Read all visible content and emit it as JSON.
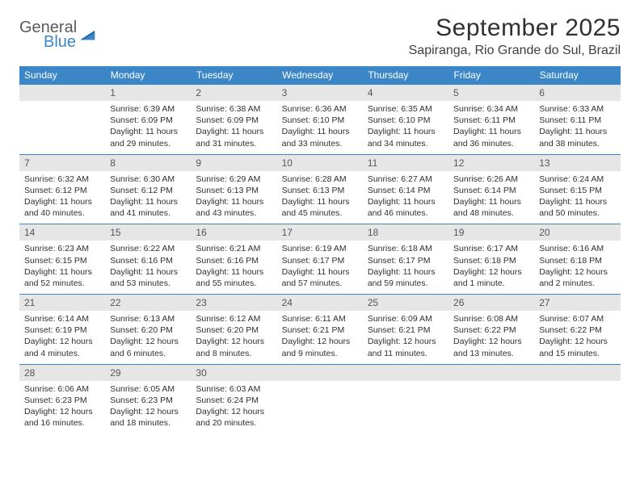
{
  "logo": {
    "general": "General",
    "blue": "Blue"
  },
  "title": "September 2025",
  "location": "Sapiranga, Rio Grande do Sul, Brazil",
  "colors": {
    "header_bg": "#3b86c6",
    "header_text": "#ffffff",
    "daynum_bg": "#e6e6e6",
    "daynum_text": "#555555",
    "rule": "#3b86c6",
    "body_text": "#303030",
    "page_bg": "#ffffff",
    "logo_gray": "#5a5a5a",
    "logo_blue": "#3b86c6"
  },
  "headers": [
    "Sunday",
    "Monday",
    "Tuesday",
    "Wednesday",
    "Thursday",
    "Friday",
    "Saturday"
  ],
  "weeks": [
    [
      {
        "n": "",
        "sr": "",
        "ss": "",
        "dl": ""
      },
      {
        "n": "1",
        "sr": "Sunrise: 6:39 AM",
        "ss": "Sunset: 6:09 PM",
        "dl": "Daylight: 11 hours and 29 minutes."
      },
      {
        "n": "2",
        "sr": "Sunrise: 6:38 AM",
        "ss": "Sunset: 6:09 PM",
        "dl": "Daylight: 11 hours and 31 minutes."
      },
      {
        "n": "3",
        "sr": "Sunrise: 6:36 AM",
        "ss": "Sunset: 6:10 PM",
        "dl": "Daylight: 11 hours and 33 minutes."
      },
      {
        "n": "4",
        "sr": "Sunrise: 6:35 AM",
        "ss": "Sunset: 6:10 PM",
        "dl": "Daylight: 11 hours and 34 minutes."
      },
      {
        "n": "5",
        "sr": "Sunrise: 6:34 AM",
        "ss": "Sunset: 6:11 PM",
        "dl": "Daylight: 11 hours and 36 minutes."
      },
      {
        "n": "6",
        "sr": "Sunrise: 6:33 AM",
        "ss": "Sunset: 6:11 PM",
        "dl": "Daylight: 11 hours and 38 minutes."
      }
    ],
    [
      {
        "n": "7",
        "sr": "Sunrise: 6:32 AM",
        "ss": "Sunset: 6:12 PM",
        "dl": "Daylight: 11 hours and 40 minutes."
      },
      {
        "n": "8",
        "sr": "Sunrise: 6:30 AM",
        "ss": "Sunset: 6:12 PM",
        "dl": "Daylight: 11 hours and 41 minutes."
      },
      {
        "n": "9",
        "sr": "Sunrise: 6:29 AM",
        "ss": "Sunset: 6:13 PM",
        "dl": "Daylight: 11 hours and 43 minutes."
      },
      {
        "n": "10",
        "sr": "Sunrise: 6:28 AM",
        "ss": "Sunset: 6:13 PM",
        "dl": "Daylight: 11 hours and 45 minutes."
      },
      {
        "n": "11",
        "sr": "Sunrise: 6:27 AM",
        "ss": "Sunset: 6:14 PM",
        "dl": "Daylight: 11 hours and 46 minutes."
      },
      {
        "n": "12",
        "sr": "Sunrise: 6:26 AM",
        "ss": "Sunset: 6:14 PM",
        "dl": "Daylight: 11 hours and 48 minutes."
      },
      {
        "n": "13",
        "sr": "Sunrise: 6:24 AM",
        "ss": "Sunset: 6:15 PM",
        "dl": "Daylight: 11 hours and 50 minutes."
      }
    ],
    [
      {
        "n": "14",
        "sr": "Sunrise: 6:23 AM",
        "ss": "Sunset: 6:15 PM",
        "dl": "Daylight: 11 hours and 52 minutes."
      },
      {
        "n": "15",
        "sr": "Sunrise: 6:22 AM",
        "ss": "Sunset: 6:16 PM",
        "dl": "Daylight: 11 hours and 53 minutes."
      },
      {
        "n": "16",
        "sr": "Sunrise: 6:21 AM",
        "ss": "Sunset: 6:16 PM",
        "dl": "Daylight: 11 hours and 55 minutes."
      },
      {
        "n": "17",
        "sr": "Sunrise: 6:19 AM",
        "ss": "Sunset: 6:17 PM",
        "dl": "Daylight: 11 hours and 57 minutes."
      },
      {
        "n": "18",
        "sr": "Sunrise: 6:18 AM",
        "ss": "Sunset: 6:17 PM",
        "dl": "Daylight: 11 hours and 59 minutes."
      },
      {
        "n": "19",
        "sr": "Sunrise: 6:17 AM",
        "ss": "Sunset: 6:18 PM",
        "dl": "Daylight: 12 hours and 1 minute."
      },
      {
        "n": "20",
        "sr": "Sunrise: 6:16 AM",
        "ss": "Sunset: 6:18 PM",
        "dl": "Daylight: 12 hours and 2 minutes."
      }
    ],
    [
      {
        "n": "21",
        "sr": "Sunrise: 6:14 AM",
        "ss": "Sunset: 6:19 PM",
        "dl": "Daylight: 12 hours and 4 minutes."
      },
      {
        "n": "22",
        "sr": "Sunrise: 6:13 AM",
        "ss": "Sunset: 6:20 PM",
        "dl": "Daylight: 12 hours and 6 minutes."
      },
      {
        "n": "23",
        "sr": "Sunrise: 6:12 AM",
        "ss": "Sunset: 6:20 PM",
        "dl": "Daylight: 12 hours and 8 minutes."
      },
      {
        "n": "24",
        "sr": "Sunrise: 6:11 AM",
        "ss": "Sunset: 6:21 PM",
        "dl": "Daylight: 12 hours and 9 minutes."
      },
      {
        "n": "25",
        "sr": "Sunrise: 6:09 AM",
        "ss": "Sunset: 6:21 PM",
        "dl": "Daylight: 12 hours and 11 minutes."
      },
      {
        "n": "26",
        "sr": "Sunrise: 6:08 AM",
        "ss": "Sunset: 6:22 PM",
        "dl": "Daylight: 12 hours and 13 minutes."
      },
      {
        "n": "27",
        "sr": "Sunrise: 6:07 AM",
        "ss": "Sunset: 6:22 PM",
        "dl": "Daylight: 12 hours and 15 minutes."
      }
    ],
    [
      {
        "n": "28",
        "sr": "Sunrise: 6:06 AM",
        "ss": "Sunset: 6:23 PM",
        "dl": "Daylight: 12 hours and 16 minutes."
      },
      {
        "n": "29",
        "sr": "Sunrise: 6:05 AM",
        "ss": "Sunset: 6:23 PM",
        "dl": "Daylight: 12 hours and 18 minutes."
      },
      {
        "n": "30",
        "sr": "Sunrise: 6:03 AM",
        "ss": "Sunset: 6:24 PM",
        "dl": "Daylight: 12 hours and 20 minutes."
      },
      {
        "n": "",
        "sr": "",
        "ss": "",
        "dl": ""
      },
      {
        "n": "",
        "sr": "",
        "ss": "",
        "dl": ""
      },
      {
        "n": "",
        "sr": "",
        "ss": "",
        "dl": ""
      },
      {
        "n": "",
        "sr": "",
        "ss": "",
        "dl": ""
      }
    ]
  ]
}
